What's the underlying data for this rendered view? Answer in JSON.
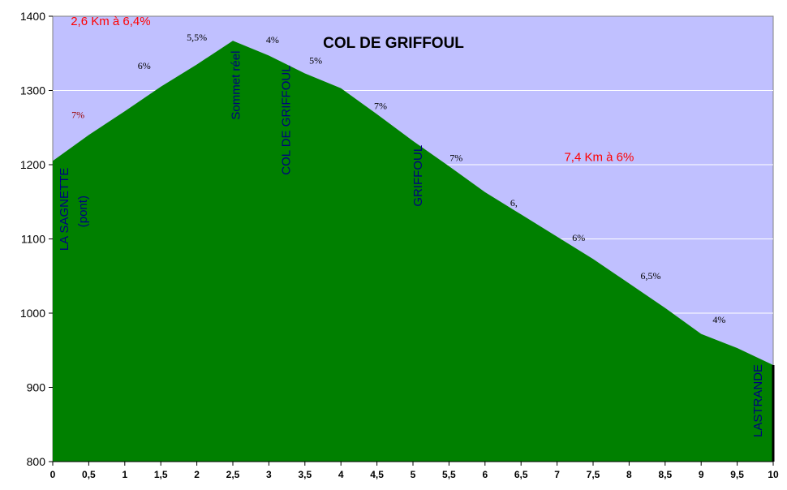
{
  "chart_data": {
    "type": "area",
    "title": "COL DE GRIFFOUL",
    "xlim": [
      0,
      10
    ],
    "ylim": [
      800,
      1400
    ],
    "x_ticks": [
      "0",
      "0,5",
      "1",
      "1,5",
      "2",
      "2,5",
      "3",
      "3,5",
      "4",
      "4,5",
      "5",
      "5,5",
      "6",
      "6,5",
      "7",
      "7,5",
      "8",
      "8,5",
      "9",
      "9,5",
      "10"
    ],
    "y_ticks": [
      800,
      900,
      1000,
      1100,
      1200,
      1300,
      1400
    ],
    "grid": true,
    "colors": {
      "plot_bg": "#c0c0ff",
      "area": "#008000",
      "text_red": "#ff0000",
      "place_blue": "#000080"
    },
    "x": [
      0,
      0.5,
      1,
      1.5,
      2,
      2.5,
      3,
      3.5,
      4,
      4.5,
      5,
      5.5,
      6,
      6.5,
      7,
      7.5,
      8,
      8.5,
      9,
      9.5,
      10
    ],
    "y": [
      1205,
      1240,
      1272,
      1305,
      1335,
      1367,
      1347,
      1323,
      1303,
      1268,
      1232,
      1198,
      1163,
      1133,
      1103,
      1073,
      1040,
      1007,
      972,
      953,
      930
    ],
    "grades": [
      {
        "x": 0.35,
        "y": 1263,
        "text": "7%",
        "red": true
      },
      {
        "x": 1.27,
        "y": 1329,
        "text": "6%",
        "red": false
      },
      {
        "x": 2,
        "y": 1367,
        "text": "5,5%",
        "red": false
      },
      {
        "x": 3.05,
        "y": 1364,
        "text": "4%",
        "red": false
      },
      {
        "x": 3.65,
        "y": 1336,
        "text": "5%",
        "red": false
      },
      {
        "x": 4.55,
        "y": 1275,
        "text": "7%",
        "red": false
      },
      {
        "x": 5.6,
        "y": 1205,
        "text": "7%",
        "red": false
      },
      {
        "x": 6.4,
        "y": 1144,
        "text": "6,",
        "red": false
      },
      {
        "x": 7.3,
        "y": 1097,
        "text": "6%",
        "red": false
      },
      {
        "x": 8.3,
        "y": 1046,
        "text": "6,5%",
        "red": false
      },
      {
        "x": 9.25,
        "y": 987,
        "text": "4%",
        "red": false
      }
    ],
    "summaries": [
      {
        "x": 0.25,
        "y": 1388,
        "text": "2,6 Km à 6,4%"
      },
      {
        "x": 7.1,
        "y": 1205,
        "text": "7,4 Km à 6%"
      }
    ],
    "places": [
      {
        "x": 0.17,
        "y": 1140,
        "text": "LA SAGNETTE"
      },
      {
        "x": 0.43,
        "y": 1137,
        "text": "(pont)"
      },
      {
        "x": 2.55,
        "y": 1307,
        "text": "Sommet réel"
      },
      {
        "x": 3.25,
        "y": 1260,
        "text": "COL DE GRIFFOUL"
      },
      {
        "x": 5.08,
        "y": 1185,
        "text": "GRIFFOUL"
      },
      {
        "x": 9.8,
        "y": 882,
        "text": "LASTRANDE"
      }
    ]
  }
}
